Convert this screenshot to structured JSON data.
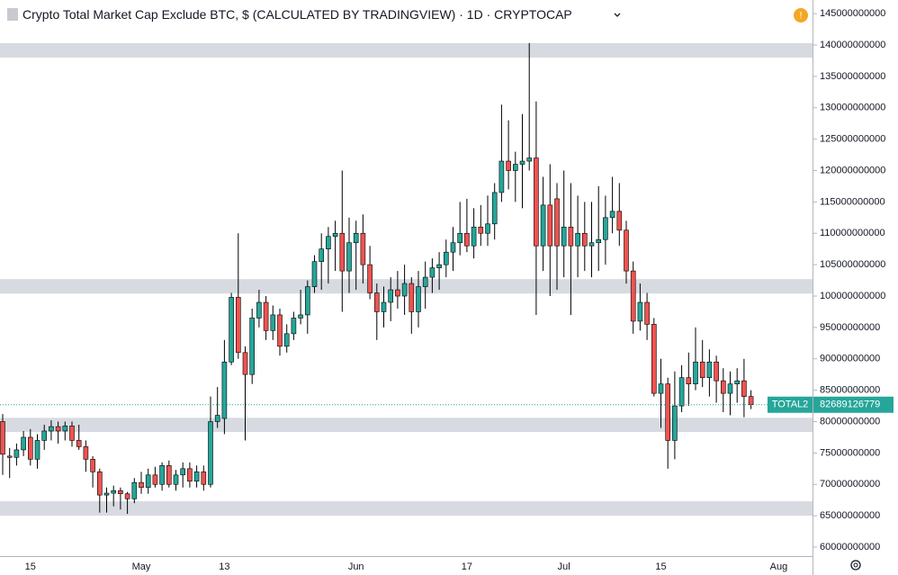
{
  "chart_data": {
    "type": "candlestick",
    "title": "Crypto Total Market Cap Exclude BTC, $ (CALCULATED BY TRADINGVIEW)",
    "interval": "1D",
    "exchange": "CRYPTOCAP",
    "symbol_label": "TOTAL2",
    "last_price": 82689126779,
    "up_color": "#26a69a",
    "down_color": "#ef5350",
    "categories": [
      null,
      null,
      null,
      null,
      "15",
      null,
      null,
      null,
      null,
      null,
      null,
      null,
      null,
      null,
      null,
      null,
      null,
      null,
      null,
      null,
      "May",
      null,
      null,
      null,
      null,
      null,
      null,
      null,
      null,
      null,
      null,
      null,
      "13",
      null,
      null,
      null,
      null,
      null,
      null,
      null,
      null,
      null,
      null,
      null,
      null,
      null,
      null,
      null,
      null,
      null,
      null,
      "Jun",
      null,
      null,
      null,
      null,
      null,
      null,
      null,
      null,
      null,
      null,
      null,
      null,
      null,
      null,
      null,
      "17",
      null,
      null,
      null,
      null,
      null,
      null,
      null,
      null,
      null,
      null,
      null,
      null,
      null,
      "Jul",
      null,
      null,
      null,
      null,
      null,
      null,
      null,
      null,
      null,
      null,
      null,
      null,
      null,
      "15",
      null,
      null,
      null,
      null,
      null,
      null,
      null,
      null,
      null,
      null,
      null,
      null,
      null,
      null,
      null,
      null,
      "Aug"
    ],
    "open": [
      80000000000.0,
      74500000000.0,
      74300000000.0,
      75500000000.0,
      77500000000.0,
      74000000000.0,
      77000000000.0,
      78500000000.0,
      79200000000.0,
      78500000000.0,
      79300000000.0,
      77000000000.0,
      76000000000.0,
      74000000000.0,
      72000000000.0,
      68300000000.0,
      68600000000.0,
      69000000000.0,
      68500000000.0,
      67700000000.0,
      70300000000.0,
      69500000000.0,
      71500000000.0,
      70000000000.0,
      73000000000.0,
      70000000000.0,
      71500000000.0,
      72500000000.0,
      70500000000.0,
      72000000000.0,
      70000000000.0,
      80000000000.0,
      80500000000.0,
      89500000000.0,
      99800000000.0,
      91000000000.0,
      87500000000.0,
      96500000000.0,
      99000000000.0,
      94500000000.0,
      97000000000.0,
      92000000000.0,
      94000000000.0,
      96500000000.0,
      97000000000.0,
      101500000000.0,
      105500000000.0,
      107500000000.0,
      109500000000.0,
      110000000000.0,
      104000000000.0,
      108500000000.0,
      110000000000.0,
      105000000000.0,
      100500000000.0,
      97500000000.0,
      99000000000.0,
      101000000000.0,
      100000000000.0,
      102000000000.0,
      97500000000.0,
      101500000000.0,
      103000000000.0,
      104500000000.0,
      105000000000.0,
      107000000000.0,
      108500000000.0,
      110000000000.0,
      108000000000.0,
      111000000000.0,
      110000000000.0,
      111500000000.0,
      116500000000.0,
      121500000000.0,
      120000000000.0,
      121000000000.0,
      121500000000.0,
      122000000000.0,
      108000000000.0,
      114500000000.0,
      115500000000.0,
      108000000000.0,
      111000000000.0,
      108000000000.0,
      110000000000.0,
      108000000000.0,
      108500000000.0,
      109000000000.0,
      112500000000.0,
      113500000000.0,
      110500000000.0,
      104000000000.0,
      96000000000.0,
      99000000000.0,
      95500000000.0,
      84500000000.0,
      86000000000.0,
      77000000000.0,
      82500000000.0,
      87000000000.0,
      86000000000.0,
      89500000000.0,
      87000000000.0,
      89500000000.0,
      86500000000.0,
      84500000000.0,
      86000000000.0,
      86500000000.0,
      84000000000.0,
      null,
      null,
      null,
      null
    ],
    "high": [
      81200000000.0,
      75800000000.0,
      76500000000.0,
      78500000000.0,
      78800000000.0,
      78000000000.0,
      79500000000.0,
      80200000000.0,
      80000000000.0,
      80000000000.0,
      80000000000.0,
      79500000000.0,
      77000000000.0,
      74500000000.0,
      72500000000.0,
      69500000000.0,
      69800000000.0,
      69500000000.0,
      68800000000.0,
      71000000000.0,
      72000000000.0,
      72500000000.0,
      72800000000.0,
      73500000000.0,
      73800000000.0,
      72300000000.0,
      73500000000.0,
      73500000000.0,
      73000000000.0,
      73000000000.0,
      84000000000.0,
      85500000000.0,
      93000000000.0,
      100500000000.0,
      110000000000.0,
      92000000000.0,
      98000000000.0,
      101000000000.0,
      100000000000.0,
      98500000000.0,
      98000000000.0,
      95500000000.0,
      97500000000.0,
      101000000000.0,
      102500000000.0,
      106500000000.0,
      110000000000.0,
      111000000000.0,
      112000000000.0,
      120000000000.0,
      112500000000.0,
      112000000000.0,
      113000000000.0,
      108000000000.0,
      102000000000.0,
      101500000000.0,
      103000000000.0,
      104000000000.0,
      105000000000.0,
      103000000000.0,
      104000000000.0,
      105500000000.0,
      106000000000.0,
      107000000000.0,
      109000000000.0,
      111000000000.0,
      115000000000.0,
      115500000000.0,
      114000000000.0,
      114500000000.0,
      116000000000.0,
      118000000000.0,
      130500000000.0,
      128000000000.0,
      123000000000.0,
      129000000000.0,
      140300000000.0,
      131000000000.0,
      119000000000.0,
      121000000000.0,
      118000000000.0,
      120000000000.0,
      118000000000.0,
      116000000000.0,
      115000000000.0,
      115000000000.0,
      117500000000.0,
      116000000000.0,
      119000000000.0,
      118000000000.0,
      112000000000.0,
      105500000000.0,
      102000000000.0,
      100500000000.0,
      96500000000.0,
      90000000000.0,
      87000000000.0,
      88000000000.0,
      89000000000.0,
      91000000000.0,
      95000000000.0,
      93000000000.0,
      91500000000.0,
      90500000000.0,
      88500000000.0,
      88000000000.0,
      88500000000.0,
      90000000000.0,
      85000000000.0,
      null,
      null,
      null,
      null
    ],
    "low": [
      71500000000.0,
      71000000000.0,
      73000000000.0,
      74500000000.0,
      73000000000.0,
      72500000000.0,
      75500000000.0,
      77000000000.0,
      76500000000.0,
      77000000000.0,
      76000000000.0,
      75500000000.0,
      72000000000.0,
      69500000000.0,
      65500000000.0,
      65500000000.0,
      66500000000.0,
      66000000000.0,
      65300000000.0,
      67000000000.0,
      68500000000.0,
      68500000000.0,
      69500000000.0,
      69000000000.0,
      69500000000.0,
      69000000000.0,
      69500000000.0,
      69500000000.0,
      69500000000.0,
      69000000000.0,
      69500000000.0,
      79000000000.0,
      78000000000.0,
      89000000000.0,
      90000000000.0,
      77000000000.0,
      86000000000.0,
      95000000000.0,
      93000000000.0,
      93000000000.0,
      90500000000.0,
      91000000000.0,
      93000000000.0,
      95500000000.0,
      94000000000.0,
      100500000000.0,
      101000000000.0,
      102000000000.0,
      104000000000.0,
      97500000000.0,
      100500000000.0,
      101000000000.0,
      102000000000.0,
      99500000000.0,
      93000000000.0,
      95000000000.0,
      96000000000.0,
      98000000000.0,
      97000000000.0,
      94000000000.0,
      95000000000.0,
      98000000000.0,
      100500000000.0,
      101000000000.0,
      103000000000.0,
      104000000000.0,
      106500000000.0,
      107000000000.0,
      106000000000.0,
      108000000000.0,
      108000000000.0,
      109000000000.0,
      115000000000.0,
      117000000000.0,
      115000000000.0,
      114000000000.0,
      120000000000.0,
      97000000000.0,
      104000000000.0,
      100000000000.0,
      101000000000.0,
      103000000000.0,
      97000000000.0,
      103000000000.0,
      104000000000.0,
      103000000000.0,
      104000000000.0,
      105000000000.0,
      110000000000.0,
      108000000000.0,
      102000000000.0,
      94000000000.0,
      94500000000.0,
      93000000000.0,
      84000000000.0,
      79000000000.0,
      72500000000.0,
      74000000000.0,
      81500000000.0,
      82500000000.0,
      85000000000.0,
      85500000000.0,
      84000000000.0,
      83000000000.0,
      81500000000.0,
      81000000000.0,
      83000000000.0,
      80700000000.0,
      82000000000.0,
      null,
      null,
      null,
      null
    ],
    "close": [
      74800000000.0,
      74300000000.0,
      75500000000.0,
      77500000000.0,
      74000000000.0,
      77000000000.0,
      78500000000.0,
      79200000000.0,
      78500000000.0,
      79300000000.0,
      77000000000.0,
      76000000000.0,
      74000000000.0,
      72000000000.0,
      68300000000.0,
      68600000000.0,
      69000000000.0,
      68500000000.0,
      67700000000.0,
      70300000000.0,
      69500000000.0,
      71500000000.0,
      70000000000.0,
      73000000000.0,
      70000000000.0,
      71500000000.0,
      72500000000.0,
      70500000000.0,
      72000000000.0,
      70000000000.0,
      80000000000.0,
      81000000000.0,
      89500000000.0,
      99800000000.0,
      91000000000.0,
      87500000000.0,
      96500000000.0,
      99000000000.0,
      94500000000.0,
      97000000000.0,
      92000000000.0,
      94000000000.0,
      96500000000.0,
      97000000000.0,
      101500000000.0,
      105500000000.0,
      107500000000.0,
      109500000000.0,
      110000000000.0,
      104000000000.0,
      108500000000.0,
      110000000000.0,
      105000000000.0,
      100500000000.0,
      97500000000.0,
      99000000000.0,
      101000000000.0,
      100000000000.0,
      102000000000.0,
      97500000000.0,
      101500000000.0,
      103000000000.0,
      104500000000.0,
      105000000000.0,
      107000000000.0,
      108500000000.0,
      110000000000.0,
      108000000000.0,
      111000000000.0,
      110000000000.0,
      111500000000.0,
      116500000000.0,
      121500000000.0,
      120000000000.0,
      121000000000.0,
      121500000000.0,
      122000000000.0,
      108000000000.0,
      114500000000.0,
      108000000000.0,
      108000000000.0,
      111000000000.0,
      108000000000.0,
      110000000000.0,
      108000000000.0,
      108500000000.0,
      109000000000.0,
      112500000000.0,
      113500000000.0,
      110500000000.0,
      104000000000.0,
      96000000000.0,
      99000000000.0,
      95500000000.0,
      84500000000.0,
      86000000000.0,
      77000000000.0,
      82500000000.0,
      87000000000.0,
      86000000000.0,
      89500000000.0,
      87000000000.0,
      89500000000.0,
      86500000000.0,
      84500000000.0,
      86000000000.0,
      86500000000.0,
      84000000000.0,
      82689126779,
      null,
      null,
      null,
      null
    ],
    "zones": [
      [
        140300000000.0,
        138000000000.0
      ],
      [
        102700000000.0,
        100400000000.0
      ],
      [
        80600000000.0,
        78350000000.0
      ],
      [
        67300000000.0,
        65000000000.0
      ]
    ],
    "ylim": [
      58570000000.0,
      147170000000.0
    ],
    "yticks": [
      60000000000,
      65000000000,
      70000000000,
      75000000000,
      80000000000,
      85000000000,
      90000000000,
      95000000000,
      100000000000,
      105000000000,
      110000000000,
      115000000000,
      120000000000,
      125000000000,
      130000000000,
      135000000000,
      140000000000,
      145000000000
    ]
  }
}
